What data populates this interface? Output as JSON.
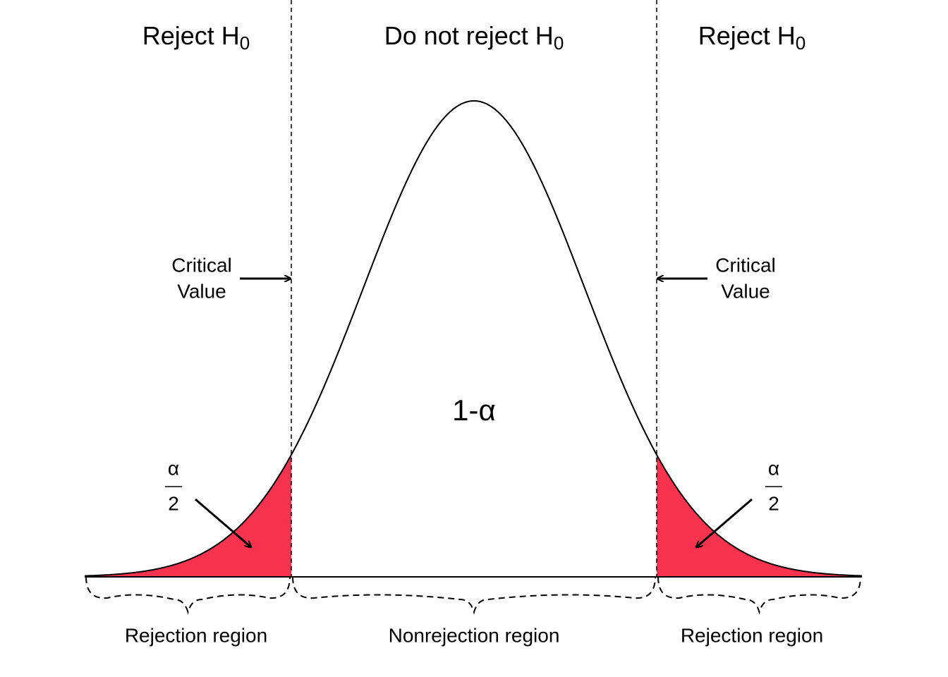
{
  "regions": [
    {
      "title": {
        "text": "Reject H",
        "subscript": "0"
      },
      "label": "Rejection region"
    },
    {
      "title": {
        "text": "Do not reject H",
        "subscript": "0"
      },
      "label": "Nonrejection region"
    },
    {
      "title": {
        "text": "Reject H",
        "subscript": "0"
      },
      "label": "Rejection region"
    }
  ],
  "critical_values": [
    {
      "lines": [
        "Critical",
        "Value"
      ]
    },
    {
      "lines": [
        "Critical",
        "Value"
      ]
    }
  ],
  "tail_areas": [
    {
      "numerator": "α",
      "denominator": "2"
    },
    {
      "numerator": "α",
      "denominator": "2"
    }
  ],
  "center_area": "1-α"
}
